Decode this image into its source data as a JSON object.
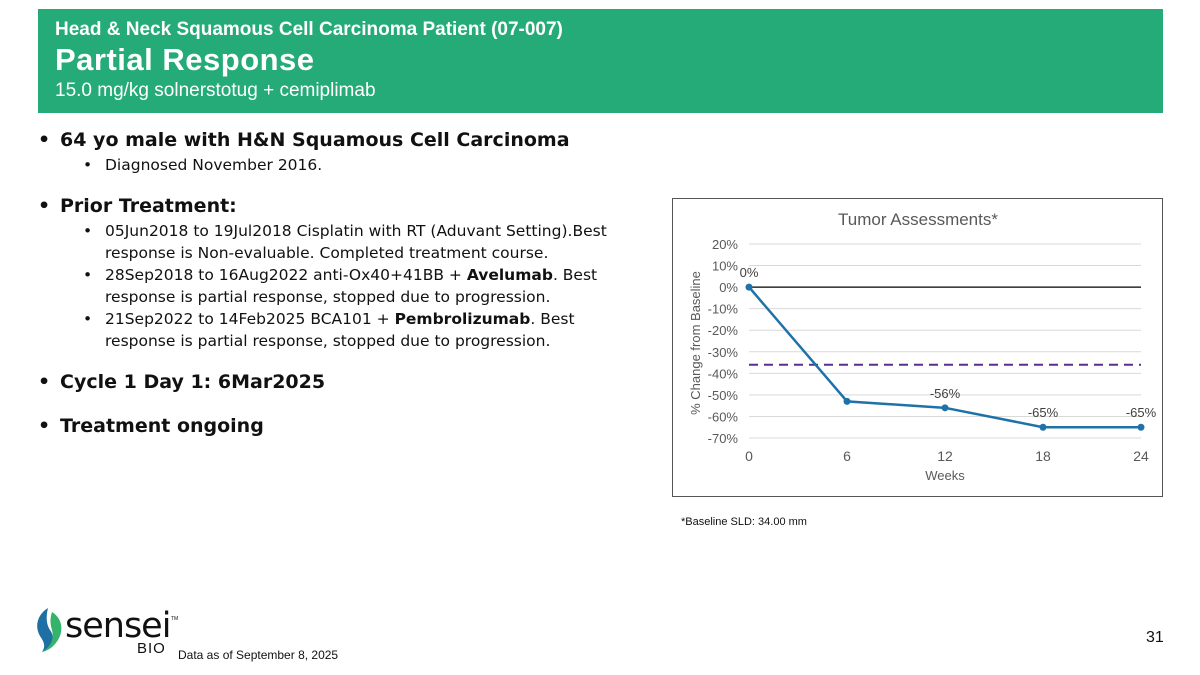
{
  "header": {
    "subtitle": "Head & Neck Squamous Cell Carcinoma Patient (07-007)",
    "title": "Partial Response",
    "dose": "15.0 mg/kg solnerstotug + cemiplimab"
  },
  "bullets": {
    "patient": "64 yo male with H&N Squamous Cell Carcinoma",
    "diagnosed": "Diagnosed November 2016.",
    "prior_heading": "Prior Treatment:",
    "prior_1": "05Jun2018 to 19Jul2018 Cisplatin with RT (Aduvant Setting).Best response is Non-evaluable. Completed treatment course.",
    "prior_2_a": "28Sep2018 to 16Aug2022 anti-Ox40+41BB + ",
    "prior_2_bold": "Avelumab",
    "prior_2_b": ". Best response is partial response, stopped due to progression.",
    "prior_3_a": "21Sep2022 to 14Feb2025 BCA101 + ",
    "prior_3_bold": "Pembrolizumab",
    "prior_3_b": ". Best response is partial response, stopped due to progression.",
    "cycle": "Cycle 1 Day 1: 6Mar2025",
    "ongoing": "Treatment ongoing"
  },
  "chart_data": {
    "type": "line",
    "title": "Tumor Assessments*",
    "xlabel": "Weeks",
    "ylabel": "% Change from Baseline",
    "x": [
      0,
      6,
      12,
      18,
      24
    ],
    "series": [
      {
        "name": "% Change from Baseline",
        "values": [
          0,
          -53,
          -56,
          -65,
          -65
        ]
      }
    ],
    "data_labels": [
      "0%",
      "",
      "-56%",
      "-65%",
      "-65%"
    ],
    "ylim": [
      -70,
      20
    ],
    "yticks": [
      20,
      10,
      0,
      -10,
      -20,
      -30,
      -40,
      -50,
      -60,
      -70
    ],
    "ytick_labels": [
      "20%",
      "10%",
      "0%",
      "-10%",
      "-20%",
      "-30%",
      "-40%",
      "-50%",
      "-60%",
      "-70%"
    ],
    "xticks": [
      0,
      6,
      12,
      18,
      24
    ],
    "xtick_labels": [
      "0",
      "6",
      "12",
      "18",
      "24"
    ],
    "reference_line": -36,
    "gridlines": true,
    "colors": {
      "line": "#1f72a8",
      "reference": "#5b2d8e",
      "grid": "#d9d9d9",
      "zero": "#000000"
    }
  },
  "footnote": "*Baseline SLD: 34.00 mm",
  "as_of": "Data as of September 8, 2025",
  "page_number": "31",
  "logo": {
    "word": "sensei",
    "bio": "BIO",
    "tm": "TM"
  }
}
